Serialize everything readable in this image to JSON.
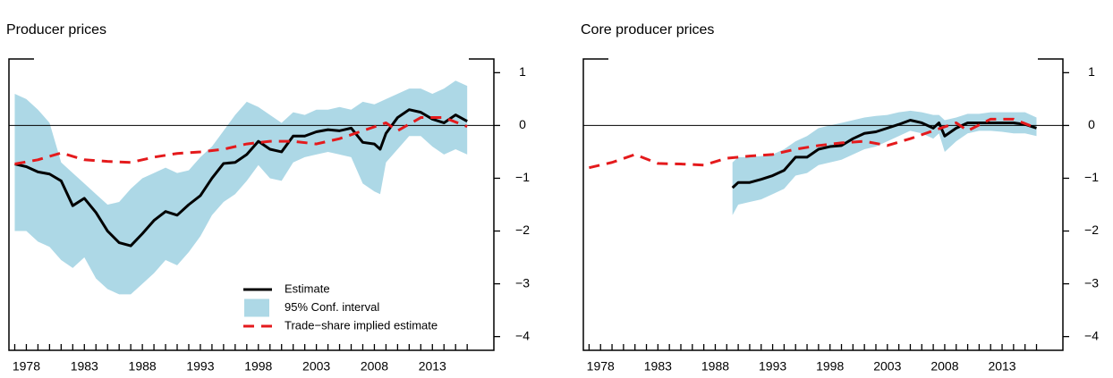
{
  "chart_data": [
    {
      "type": "line",
      "title": "Producer prices",
      "xlim": [
        1976.5,
        2018.3
      ],
      "xticks": [
        1978,
        1983,
        1988,
        1993,
        1998,
        2003,
        2008,
        2013
      ],
      "xticks_minor": [
        1977,
        1978,
        1979,
        1980,
        1981,
        1982,
        1983,
        1984,
        1985,
        1986,
        1987,
        1988,
        1989,
        1990,
        1991,
        1992,
        1993,
        1994,
        1995,
        1996,
        1997,
        1998,
        1999,
        2000,
        2001,
        2002,
        2003,
        2004,
        2005,
        2006,
        2007,
        2008,
        2009,
        2010,
        2011,
        2012,
        2013,
        2014,
        2015,
        2016
      ],
      "ylim": [
        -4.26,
        1.26
      ],
      "yticks": [
        {
          "value": -4,
          "label": "−4"
        },
        {
          "value": -3,
          "label": "−3"
        },
        {
          "value": -2,
          "label": "−2"
        },
        {
          "value": -1,
          "label": "−1"
        },
        0,
        1
      ],
      "hline": 0,
      "legend": "lower right",
      "series": [
        {
          "name": "Estimate",
          "type": "line",
          "color": "#000000",
          "x": [
            1977,
            1978,
            1979,
            1980,
            1981,
            1982,
            1983,
            1984,
            1985,
            1986,
            1987,
            1988,
            1989,
            1990,
            1991,
            1992,
            1993,
            1994,
            1995,
            1996,
            1997,
            1998,
            1999,
            2000,
            2001,
            2002,
            2003,
            2004,
            2005,
            2006,
            2007,
            2008,
            2008.5,
            2009,
            2010,
            2011,
            2012,
            2013,
            2014,
            2015,
            2016
          ],
          "values": [
            -0.73,
            -0.78,
            -0.88,
            -0.92,
            -1.05,
            -1.52,
            -1.38,
            -1.65,
            -2.0,
            -2.22,
            -2.28,
            -2.05,
            -1.8,
            -1.63,
            -1.7,
            -1.5,
            -1.33,
            -1.0,
            -0.72,
            -0.7,
            -0.55,
            -0.3,
            -0.45,
            -0.5,
            -0.2,
            -0.2,
            -0.12,
            -0.08,
            -0.1,
            -0.05,
            -0.32,
            -0.35,
            -0.45,
            -0.15,
            0.15,
            0.3,
            0.25,
            0.12,
            0.05,
            0.2,
            0.08
          ]
        },
        {
          "name": "95% Conf. interval",
          "type": "band",
          "color": "#add8e6",
          "x": [
            1977,
            1978,
            1979,
            1980,
            1981,
            1982,
            1983,
            1984,
            1985,
            1986,
            1987,
            1988,
            1989,
            1990,
            1991,
            1992,
            1993,
            1994,
            1995,
            1996,
            1997,
            1998,
            1999,
            2000,
            2001,
            2002,
            2003,
            2004,
            2005,
            2006,
            2007,
            2008,
            2008.5,
            2009,
            2010,
            2011,
            2012,
            2013,
            2014,
            2015,
            2016
          ],
          "upper": [
            0.6,
            0.5,
            0.3,
            0.05,
            -0.7,
            -0.9,
            -1.1,
            -1.3,
            -1.5,
            -1.45,
            -1.2,
            -1.0,
            -0.9,
            -0.8,
            -0.9,
            -0.85,
            -0.6,
            -0.4,
            -0.1,
            0.2,
            0.45,
            0.35,
            0.2,
            0.05,
            0.25,
            0.2,
            0.3,
            0.3,
            0.35,
            0.3,
            0.45,
            0.4,
            0.45,
            0.5,
            0.6,
            0.7,
            0.7,
            0.6,
            0.7,
            0.85,
            0.75
          ],
          "lower": [
            -2.0,
            -2.0,
            -2.2,
            -2.3,
            -2.55,
            -2.7,
            -2.5,
            -2.9,
            -3.1,
            -3.2,
            -3.2,
            -3.0,
            -2.8,
            -2.55,
            -2.65,
            -2.4,
            -2.1,
            -1.7,
            -1.45,
            -1.3,
            -1.05,
            -0.75,
            -1.0,
            -1.05,
            -0.7,
            -0.6,
            -0.55,
            -0.5,
            -0.55,
            -0.6,
            -1.1,
            -1.25,
            -1.3,
            -0.7,
            -0.45,
            -0.2,
            -0.2,
            -0.4,
            -0.55,
            -0.45,
            -0.55
          ]
        },
        {
          "name": "Trade−share implied estimate",
          "type": "line",
          "dash": true,
          "color": "#e41a1c",
          "x": [
            1977,
            1979,
            1981,
            1983,
            1985,
            1987,
            1989,
            1991,
            1993,
            1995,
            1997,
            1999,
            2001,
            2003,
            2005,
            2007,
            2009,
            2010,
            2012,
            2014,
            2016
          ],
          "values": [
            -0.73,
            -0.65,
            -0.52,
            -0.65,
            -0.68,
            -0.7,
            -0.6,
            -0.53,
            -0.5,
            -0.45,
            -0.35,
            -0.3,
            -0.3,
            -0.35,
            -0.25,
            -0.1,
            0.05,
            -0.1,
            0.15,
            0.15,
            -0.02
          ]
        }
      ]
    },
    {
      "type": "line",
      "title": "Core producer prices",
      "xlim": [
        1976.5,
        2018.3
      ],
      "xticks": [
        1978,
        1983,
        1988,
        1993,
        1998,
        2003,
        2008,
        2013
      ],
      "xticks_minor": [
        1977,
        1978,
        1979,
        1980,
        1981,
        1982,
        1983,
        1984,
        1985,
        1986,
        1987,
        1988,
        1989,
        1990,
        1991,
        1992,
        1993,
        1994,
        1995,
        1996,
        1997,
        1998,
        1999,
        2000,
        2001,
        2002,
        2003,
        2004,
        2005,
        2006,
        2007,
        2008,
        2009,
        2010,
        2011,
        2012,
        2013,
        2014,
        2015,
        2016
      ],
      "ylim": [
        -4.26,
        1.26
      ],
      "yticks": [
        {
          "value": -4,
          "label": "−4"
        },
        {
          "value": -3,
          "label": "−3"
        },
        {
          "value": -2,
          "label": "−2"
        },
        {
          "value": -1,
          "label": "−1"
        },
        0,
        1
      ],
      "hline": 0,
      "series": [
        {
          "type": "line",
          "color": "#000000",
          "x": [
            1989.5,
            1990,
            1991,
            1992,
            1993,
            1994,
            1995,
            1996,
            1997,
            1998,
            1999,
            2000,
            2001,
            2002,
            2003,
            2004,
            2005,
            2006,
            2007,
            2007.5,
            2008,
            2009,
            2010,
            2011,
            2012,
            2013,
            2014,
            2015,
            2016
          ],
          "values": [
            -1.18,
            -1.08,
            -1.08,
            -1.02,
            -0.95,
            -0.85,
            -0.6,
            -0.6,
            -0.45,
            -0.4,
            -0.38,
            -0.25,
            -0.15,
            -0.12,
            -0.05,
            0.02,
            0.1,
            0.05,
            -0.05,
            0.05,
            -0.2,
            -0.05,
            0.05,
            0.05,
            0.05,
            0.05,
            0.05,
            0.02,
            -0.05
          ]
        },
        {
          "type": "band",
          "color": "#add8e6",
          "x": [
            1989.5,
            1990,
            1991,
            1992,
            1993,
            1994,
            1995,
            1996,
            1997,
            1998,
            1999,
            2000,
            2001,
            2002,
            2003,
            2004,
            2005,
            2006,
            2007,
            2007.5,
            2008,
            2009,
            2010,
            2011,
            2012,
            2013,
            2014,
            2015,
            2016
          ],
          "upper": [
            -0.7,
            -0.6,
            -0.6,
            -0.58,
            -0.55,
            -0.45,
            -0.3,
            -0.2,
            -0.05,
            0.0,
            0.05,
            0.1,
            0.15,
            0.18,
            0.2,
            0.25,
            0.28,
            0.25,
            0.2,
            0.2,
            0.1,
            0.15,
            0.22,
            0.22,
            0.25,
            0.25,
            0.25,
            0.25,
            0.15
          ],
          "lower": [
            -1.7,
            -1.5,
            -1.45,
            -1.4,
            -1.3,
            -1.2,
            -0.95,
            -0.9,
            -0.75,
            -0.7,
            -0.65,
            -0.55,
            -0.45,
            -0.4,
            -0.3,
            -0.2,
            -0.1,
            -0.15,
            -0.25,
            -0.15,
            -0.5,
            -0.3,
            -0.15,
            -0.1,
            -0.1,
            -0.12,
            -0.15,
            -0.15,
            -0.2
          ]
        },
        {
          "type": "line",
          "dash": true,
          "color": "#e41a1c",
          "x": [
            1977,
            1979,
            1981,
            1983,
            1985,
            1987,
            1989,
            1991,
            1993,
            1995,
            1997,
            1999,
            2001,
            2003,
            2005,
            2007,
            2009,
            2010,
            2012,
            2014,
            2016
          ],
          "values": [
            -0.8,
            -0.7,
            -0.55,
            -0.72,
            -0.73,
            -0.75,
            -0.62,
            -0.58,
            -0.55,
            -0.45,
            -0.38,
            -0.33,
            -0.3,
            -0.38,
            -0.25,
            -0.1,
            0.05,
            -0.1,
            0.12,
            0.12,
            -0.05
          ]
        }
      ]
    }
  ]
}
